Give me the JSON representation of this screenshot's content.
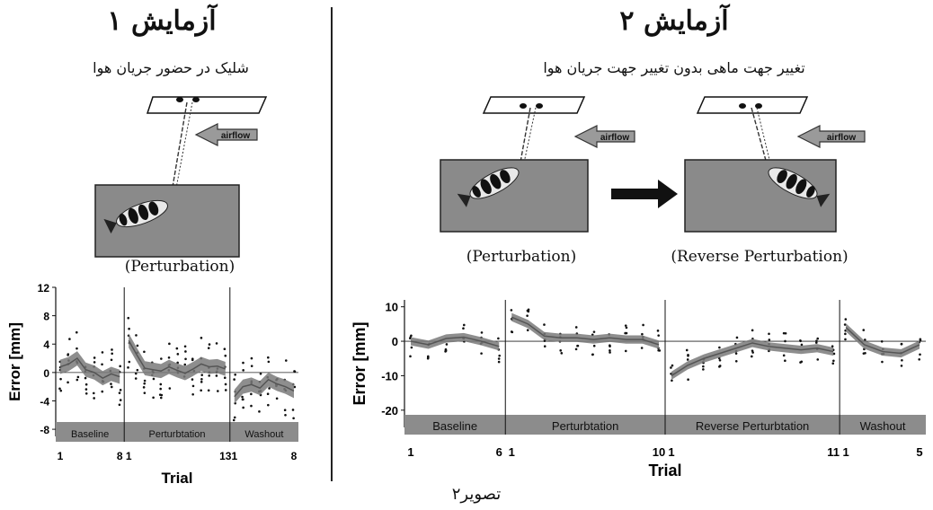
{
  "experiment1": {
    "title": "آزمایش ۱",
    "subtitle": "شلیک در حضور جریان هوا",
    "condition": "(Perturbation)",
    "airflow_label": "airflow"
  },
  "experiment2": {
    "title": "آزمایش ۲",
    "subtitle": "تغییر جهت ماهی بدون تغییر جهت جریان هوا",
    "condition_left": "(Perturbation)",
    "condition_right": "(Reverse Perturbation)",
    "airflow_label": "airflow"
  },
  "caption": "تصویر۲",
  "colors": {
    "band": "#8c8c8c",
    "tank": "#8a8a8a",
    "trace": "#555555"
  },
  "chart_data": [
    {
      "type": "line",
      "ylabel": "Error [mm]",
      "xlabel": "Trial",
      "ylim": [
        -9,
        12
      ],
      "yticks": [
        12,
        8,
        4,
        0,
        -4,
        -8
      ],
      "phases": [
        {
          "name": "Baseline",
          "n": 8,
          "ticks": [
            "1",
            "8"
          ],
          "mean": [
            0.8,
            1.2,
            2.0,
            0.4,
            0.0,
            -0.8,
            -0.2,
            -0.6
          ]
        },
        {
          "name": "Perturbtation",
          "n": 13,
          "ticks": [
            "1",
            "13"
          ],
          "mean": [
            4.5,
            2.5,
            0.6,
            0.4,
            0.2,
            0.8,
            0.3,
            -0.1,
            0.5,
            1.2,
            0.8,
            0.9,
            0.5
          ]
        },
        {
          "name": "Washout",
          "n": 8,
          "ticks": [
            "1",
            "8"
          ],
          "mean": [
            -3.4,
            -2.0,
            -1.7,
            -2.2,
            -1.0,
            -1.6,
            -2.0,
            -2.6
          ]
        }
      ]
    },
    {
      "type": "line",
      "ylabel": "Error [mm]",
      "xlabel": "Trial",
      "ylim": [
        -25,
        12
      ],
      "yticks": [
        10,
        0,
        -10,
        -20
      ],
      "phases": [
        {
          "name": "Baseline",
          "n": 6,
          "ticks": [
            "1",
            "6"
          ],
          "mean": [
            0.0,
            -1.0,
            0.8,
            1.2,
            0.0,
            -1.5
          ]
        },
        {
          "name": "Perturbtation",
          "n": 10,
          "ticks": [
            "1",
            "10"
          ],
          "mean": [
            7.0,
            5.0,
            1.5,
            1.0,
            1.0,
            0.5,
            1.0,
            0.5,
            0.5,
            -1.0
          ]
        },
        {
          "name": "Reverse Perturbtation",
          "n": 11,
          "ticks": [
            "1",
            "11"
          ],
          "mean": [
            -10.0,
            -7.0,
            -5.0,
            -3.5,
            -2.0,
            -0.5,
            -1.5,
            -2.0,
            -2.5,
            -2.0,
            -3.0
          ]
        },
        {
          "name": "Washout",
          "n": 5,
          "ticks": [
            "1",
            "5"
          ],
          "mean": [
            4.0,
            -1.0,
            -3.0,
            -3.5,
            -1.0
          ]
        }
      ]
    }
  ]
}
